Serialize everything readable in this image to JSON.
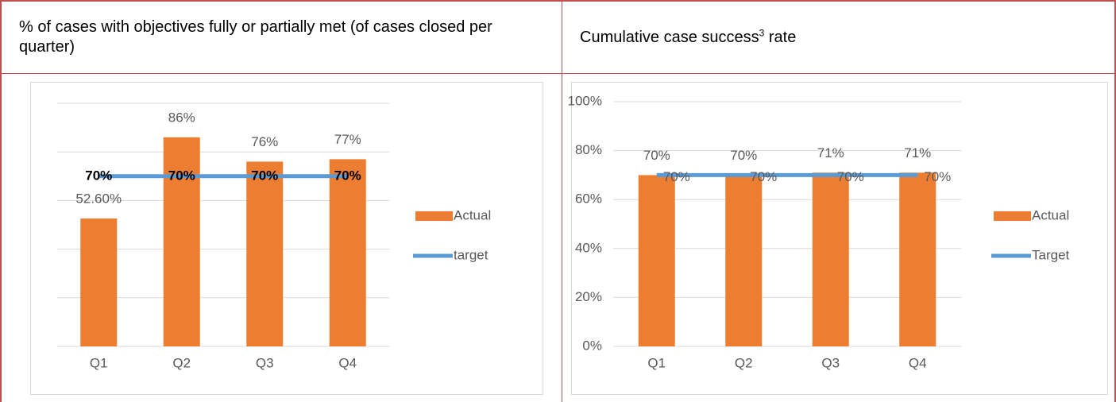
{
  "table": {
    "headers": [
      "% of cases with objectives fully or partially met (of cases closed per quarter)",
      [
        "Cumulative case success",
        "3",
        " rate"
      ]
    ]
  },
  "chart_data": [
    {
      "type": "bar",
      "categories": [
        "Q1",
        "Q2",
        "Q3",
        "Q4"
      ],
      "series": [
        {
          "name": "Actual",
          "color": "#ed7d31",
          "values": [
            52.6,
            86,
            76,
            77
          ],
          "value_labels": [
            "52.60%",
            "86%",
            "76%",
            "77%"
          ]
        },
        {
          "name": "target",
          "type": "line",
          "color": "#5b9bd5",
          "values": [
            70,
            70,
            70,
            70
          ],
          "value_labels": [
            "70%",
            "70%",
            "70%",
            "70%"
          ],
          "label_position": "center",
          "label_weight": "bold"
        }
      ],
      "ylim": [
        0,
        100
      ],
      "ygrid": [
        0,
        20,
        40,
        60,
        80,
        100
      ],
      "legend": "right"
    },
    {
      "type": "bar",
      "categories": [
        "Q1",
        "Q2",
        "Q3",
        "Q4"
      ],
      "series": [
        {
          "name": "Actual",
          "color": "#ed7d31",
          "values": [
            70,
            70,
            71,
            71
          ],
          "value_labels": [
            "70%",
            "70%",
            "71%",
            "71%"
          ]
        },
        {
          "name": "Target",
          "type": "line",
          "color": "#5b9bd5",
          "values": [
            70,
            70,
            70,
            70
          ],
          "value_labels": [
            "70%",
            "70%",
            "70%",
            "70%"
          ],
          "label_position": "right",
          "label_weight": "normal"
        }
      ],
      "ylim": [
        0,
        100
      ],
      "yticks": [
        {
          "value": 0,
          "label": "0%"
        },
        {
          "value": 20,
          "label": "20%"
        },
        {
          "value": 40,
          "label": "40%"
        },
        {
          "value": 60,
          "label": "60%"
        },
        {
          "value": 80,
          "label": "80%"
        },
        {
          "value": 100,
          "label": "100%"
        }
      ],
      "grid": true,
      "legend": "right"
    }
  ]
}
